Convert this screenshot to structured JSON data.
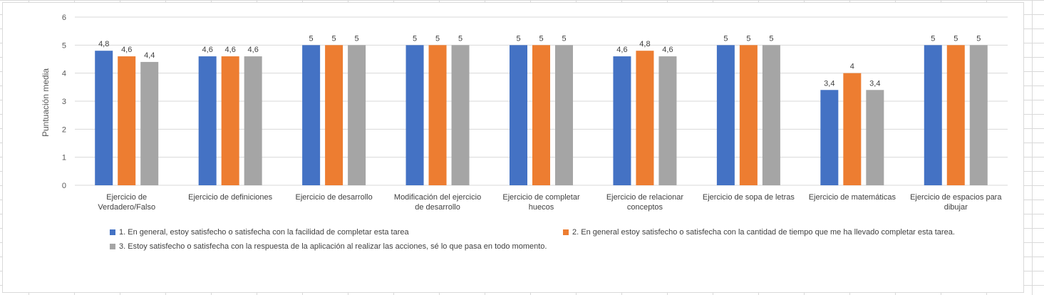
{
  "chart_data": {
    "type": "bar",
    "categories": [
      [
        "Ejercicio de",
        "Verdadero/Falso"
      ],
      [
        "Ejercicio de definiciones"
      ],
      [
        "Ejercicio de desarrollo"
      ],
      [
        "Modificación del ejercicio",
        "de desarrollo"
      ],
      [
        "Ejercicio de completar",
        "huecos"
      ],
      [
        "Ejercicio de relacionar",
        "conceptos"
      ],
      [
        "Ejercicio de sopa de letras"
      ],
      [
        "Ejercicio de matemáticas"
      ],
      [
        "Ejercicio de espacios para",
        "dibujar"
      ]
    ],
    "series": [
      {
        "name": "1. En general, estoy satisfecho o satisfecha con la facilidad de completar esta tarea",
        "color": "#4472c4",
        "values": [
          4.8,
          4.6,
          5,
          5,
          5,
          4.6,
          5,
          3.4,
          5
        ],
        "labels": [
          "4,8",
          "4,6",
          "5",
          "5",
          "5",
          "4,6",
          "5",
          "3,4",
          "5"
        ]
      },
      {
        "name": "2. En general estoy satisfecho o satisfecha con la cantidad de tiempo que me ha llevado completar esta tarea.",
        "color": "#ed7d31",
        "values": [
          4.6,
          4.6,
          5,
          5,
          5,
          4.8,
          5,
          4,
          5
        ],
        "labels": [
          "4,6",
          "4,6",
          "5",
          "5",
          "5",
          "4,8",
          "5",
          "4",
          "5"
        ]
      },
      {
        "name": "3. Estoy satisfecho o satisfecha con la respuesta de la aplicación al realizar las acciones, sé lo que pasa en todo momento.",
        "color": "#a5a5a5",
        "values": [
          4.4,
          4.6,
          5,
          5,
          5,
          4.6,
          5,
          3.4,
          5
        ],
        "labels": [
          "4,4",
          "4,6",
          "5",
          "5",
          "5",
          "4,6",
          "5",
          "3,4",
          "5"
        ]
      }
    ],
    "ylabel": "Puntuación media",
    "xlabel": "",
    "title": "",
    "ylim": [
      0,
      6
    ],
    "yticks": [
      0,
      1,
      2,
      3,
      4,
      5,
      6
    ],
    "grid": "horizontal",
    "legend_position": "bottom"
  }
}
